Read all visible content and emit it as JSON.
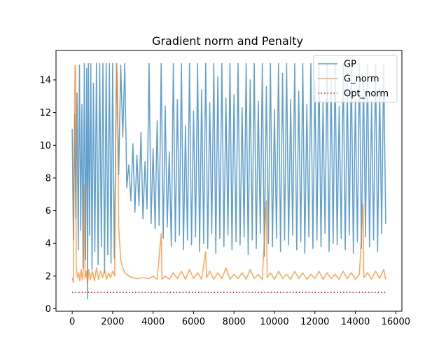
{
  "chart_data": {
    "type": "line",
    "title": "Gradient norm and Penalty",
    "xlabel": "",
    "ylabel": "",
    "xlim": [
      -800,
      16300
    ],
    "ylim": [
      -0.15,
      15.8
    ],
    "xticks": [
      0,
      2000,
      4000,
      6000,
      8000,
      10000,
      12000,
      14000,
      16000
    ],
    "yticks": [
      0,
      2,
      4,
      6,
      8,
      10,
      12,
      14
    ],
    "grid": false,
    "legend_position": "top-right",
    "series": [
      {
        "name": "GP",
        "color": "#1f77b4",
        "alpha": 0.7,
        "style": "solid",
        "x_range": [
          0,
          15500
        ],
        "points": [
          [
            0,
            11.0
          ],
          [
            60,
            4.2
          ],
          [
            120,
            11.9
          ],
          [
            180,
            5.5
          ],
          [
            240,
            13.2
          ],
          [
            300,
            3.6
          ],
          [
            360,
            14.9
          ],
          [
            420,
            4.8
          ],
          [
            480,
            12.5
          ],
          [
            540,
            2.5
          ],
          [
            600,
            15.0
          ],
          [
            660,
            3.0
          ],
          [
            720,
            14.7
          ],
          [
            760,
            0.6
          ],
          [
            800,
            15.0
          ],
          [
            860,
            4.5
          ],
          [
            920,
            15.0
          ],
          [
            980,
            2.4
          ],
          [
            1050,
            13.8
          ],
          [
            1120,
            3.5
          ],
          [
            1200,
            15.0
          ],
          [
            1280,
            2.7
          ],
          [
            1360,
            15.0
          ],
          [
            1440,
            3.8
          ],
          [
            1520,
            15.0
          ],
          [
            1600,
            2.2
          ],
          [
            1680,
            15.0
          ],
          [
            1760,
            3.3
          ],
          [
            1840,
            15.0
          ],
          [
            1920,
            2.8
          ],
          [
            2000,
            15.0
          ],
          [
            2080,
            3.1
          ],
          [
            2200,
            15.0
          ],
          [
            2300,
            8.2
          ],
          [
            2400,
            14.9
          ],
          [
            2500,
            10.5
          ],
          [
            2600,
            15.0
          ],
          [
            2700,
            7.4
          ],
          [
            2800,
            8.8
          ],
          [
            2900,
            6.6
          ],
          [
            3000,
            10.1
          ],
          [
            3100,
            5.9
          ],
          [
            3200,
            9.4
          ],
          [
            3300,
            6.3
          ],
          [
            3400,
            10.8
          ],
          [
            3500,
            5.5
          ],
          [
            3600,
            9.0
          ],
          [
            3700,
            6.1
          ],
          [
            3800,
            15.0
          ],
          [
            3900,
            5.2
          ],
          [
            4000,
            9.8
          ],
          [
            4100,
            4.9
          ],
          [
            4200,
            11.5
          ],
          [
            4300,
            5.1
          ],
          [
            4400,
            15.0
          ],
          [
            4500,
            4.3
          ],
          [
            4600,
            12.4
          ],
          [
            4700,
            5.0
          ],
          [
            4800,
            9.6
          ],
          [
            4900,
            3.8
          ],
          [
            5000,
            15.0
          ],
          [
            5100,
            4.1
          ],
          [
            5200,
            12.8
          ],
          [
            5300,
            4.5
          ],
          [
            5400,
            15.0
          ],
          [
            5500,
            3.6
          ],
          [
            5600,
            11.2
          ],
          [
            5700,
            4.2
          ],
          [
            5800,
            15.0
          ],
          [
            5900,
            3.9
          ],
          [
            6000,
            12.1
          ],
          [
            6100,
            4.4
          ],
          [
            6200,
            15.0
          ],
          [
            6300,
            3.5
          ],
          [
            6400,
            13.4
          ],
          [
            6500,
            4.0
          ],
          [
            6600,
            15.0
          ],
          [
            6700,
            3.7
          ],
          [
            6800,
            12.6
          ],
          [
            6900,
            4.6
          ],
          [
            7000,
            15.0
          ],
          [
            7100,
            3.4
          ],
          [
            7200,
            14.2
          ],
          [
            7300,
            4.3
          ],
          [
            7400,
            15.0
          ],
          [
            7500,
            3.8
          ],
          [
            7600,
            12.9
          ],
          [
            7700,
            4.5
          ],
          [
            7800,
            15.0
          ],
          [
            7900,
            3.6
          ],
          [
            8000,
            13.1
          ],
          [
            8100,
            4.1
          ],
          [
            8200,
            15.0
          ],
          [
            8300,
            3.9
          ],
          [
            8400,
            12.3
          ],
          [
            8500,
            4.4
          ],
          [
            8600,
            15.0
          ],
          [
            8700,
            3.3
          ],
          [
            8800,
            14.0
          ],
          [
            8900,
            4.2
          ],
          [
            9000,
            15.0
          ],
          [
            9100,
            3.7
          ],
          [
            9200,
            12.7
          ],
          [
            9300,
            4.6
          ],
          [
            9400,
            15.0
          ],
          [
            9500,
            3.2
          ],
          [
            9600,
            13.6
          ],
          [
            9700,
            4.0
          ],
          [
            9800,
            15.0
          ],
          [
            9900,
            3.8
          ],
          [
            10000,
            12.2
          ],
          [
            10100,
            4.3
          ],
          [
            10200,
            15.0
          ],
          [
            10300,
            3.5
          ],
          [
            10400,
            14.4
          ],
          [
            10500,
            4.2
          ],
          [
            10600,
            15.0
          ],
          [
            10700,
            3.9
          ],
          [
            10800,
            12.8
          ],
          [
            10900,
            4.5
          ],
          [
            11000,
            15.0
          ],
          [
            11100,
            3.6
          ],
          [
            11200,
            13.3
          ],
          [
            11300,
            4.1
          ],
          [
            11400,
            15.0
          ],
          [
            11500,
            3.4
          ],
          [
            11600,
            12.5
          ],
          [
            11700,
            4.4
          ],
          [
            11800,
            15.0
          ],
          [
            11900,
            3.7
          ],
          [
            12000,
            13.9
          ],
          [
            12100,
            4.2
          ],
          [
            12200,
            15.0
          ],
          [
            12300,
            3.8
          ],
          [
            12400,
            12.6
          ],
          [
            12500,
            4.6
          ],
          [
            12600,
            15.0
          ],
          [
            12700,
            3.5
          ],
          [
            12800,
            14.1
          ],
          [
            12900,
            4.0
          ],
          [
            13000,
            15.0
          ],
          [
            13100,
            3.9
          ],
          [
            13200,
            12.4
          ],
          [
            13300,
            4.3
          ],
          [
            13400,
            15.0
          ],
          [
            13500,
            3.6
          ],
          [
            13600,
            13.7
          ],
          [
            13700,
            4.5
          ],
          [
            13800,
            15.0
          ],
          [
            13900,
            3.4
          ],
          [
            14000,
            12.9
          ],
          [
            14100,
            4.1
          ],
          [
            14200,
            15.0
          ],
          [
            14300,
            3.7
          ],
          [
            14400,
            14.3
          ],
          [
            14500,
            4.4
          ],
          [
            14600,
            15.0
          ],
          [
            14700,
            3.8
          ],
          [
            14800,
            12.7
          ],
          [
            14900,
            4.2
          ],
          [
            15000,
            15.0
          ],
          [
            15100,
            3.5
          ],
          [
            15200,
            13.5
          ],
          [
            15300,
            4.6
          ],
          [
            15400,
            15.0
          ],
          [
            15500,
            5.2
          ]
        ]
      },
      {
        "name": "G_norm",
        "color": "#ff7f0e",
        "alpha": 0.7,
        "style": "solid",
        "x_range": [
          0,
          15500
        ],
        "points": [
          [
            0,
            1.9
          ],
          [
            60,
            1.6
          ],
          [
            100,
            9.5
          ],
          [
            140,
            14.9
          ],
          [
            170,
            14.6
          ],
          [
            200,
            2.6
          ],
          [
            260,
            1.9
          ],
          [
            320,
            2.2
          ],
          [
            380,
            1.7
          ],
          [
            440,
            2.4
          ],
          [
            500,
            1.8
          ],
          [
            560,
            2.6
          ],
          [
            600,
            7.6
          ],
          [
            640,
            1.9
          ],
          [
            700,
            2.3
          ],
          [
            760,
            1.5
          ],
          [
            820,
            2.4
          ],
          [
            900,
            1.8
          ],
          [
            1000,
            2.3
          ],
          [
            1100,
            1.7
          ],
          [
            1200,
            2.5
          ],
          [
            1300,
            1.8
          ],
          [
            1400,
            2.3
          ],
          [
            1500,
            1.9
          ],
          [
            1600,
            2.4
          ],
          [
            1700,
            1.8
          ],
          [
            1800,
            2.2
          ],
          [
            1900,
            1.9
          ],
          [
            2000,
            2.3
          ],
          [
            2100,
            2.0
          ],
          [
            2150,
            10.0
          ],
          [
            2190,
            15.0
          ],
          [
            2230,
            14.0
          ],
          [
            2300,
            5.0
          ],
          [
            2400,
            3.0
          ],
          [
            2500,
            2.5
          ],
          [
            2600,
            2.2
          ],
          [
            2800,
            2.0
          ],
          [
            3000,
            1.9
          ],
          [
            3200,
            1.85
          ],
          [
            3500,
            1.9
          ],
          [
            3800,
            1.85
          ],
          [
            4000,
            2.0
          ],
          [
            4200,
            1.8
          ],
          [
            4400,
            4.6
          ],
          [
            4440,
            1.8
          ],
          [
            4600,
            2.0
          ],
          [
            4800,
            1.8
          ],
          [
            5000,
            2.2
          ],
          [
            5200,
            1.85
          ],
          [
            5400,
            2.3
          ],
          [
            5600,
            1.8
          ],
          [
            5800,
            2.4
          ],
          [
            6000,
            1.85
          ],
          [
            6200,
            2.2
          ],
          [
            6400,
            1.8
          ],
          [
            6600,
            3.5
          ],
          [
            6640,
            1.9
          ],
          [
            6800,
            2.3
          ],
          [
            7000,
            1.8
          ],
          [
            7200,
            2.2
          ],
          [
            7400,
            1.85
          ],
          [
            7600,
            2.5
          ],
          [
            7800,
            1.8
          ],
          [
            8000,
            2.1
          ],
          [
            8200,
            1.85
          ],
          [
            8400,
            2.2
          ],
          [
            8600,
            1.8
          ],
          [
            8800,
            2.4
          ],
          [
            9000,
            1.85
          ],
          [
            9200,
            2.1
          ],
          [
            9400,
            1.8
          ],
          [
            9600,
            6.6
          ],
          [
            9640,
            1.9
          ],
          [
            9800,
            2.2
          ],
          [
            10000,
            1.8
          ],
          [
            10200,
            2.3
          ],
          [
            10400,
            1.85
          ],
          [
            10600,
            2.1
          ],
          [
            10800,
            1.8
          ],
          [
            11000,
            2.3
          ],
          [
            11200,
            1.85
          ],
          [
            11400,
            2.2
          ],
          [
            11600,
            1.8
          ],
          [
            11800,
            2.1
          ],
          [
            12000,
            1.85
          ],
          [
            12200,
            2.3
          ],
          [
            12400,
            1.8
          ],
          [
            12600,
            2.2
          ],
          [
            12800,
            1.85
          ],
          [
            13000,
            2.1
          ],
          [
            13200,
            1.8
          ],
          [
            13400,
            2.3
          ],
          [
            13600,
            1.85
          ],
          [
            13800,
            2.2
          ],
          [
            14000,
            1.8
          ],
          [
            14200,
            2.1
          ],
          [
            14380,
            6.4
          ],
          [
            14420,
            1.9
          ],
          [
            14600,
            2.2
          ],
          [
            14800,
            1.8
          ],
          [
            15000,
            2.3
          ],
          [
            15200,
            1.85
          ],
          [
            15400,
            2.4
          ],
          [
            15500,
            1.8
          ]
        ]
      },
      {
        "name": "Opt_norm",
        "color": "#ff0000",
        "alpha": 1.0,
        "style": "dotted",
        "points": [
          [
            0,
            1.0
          ],
          [
            15500,
            1.0
          ]
        ]
      }
    ]
  }
}
